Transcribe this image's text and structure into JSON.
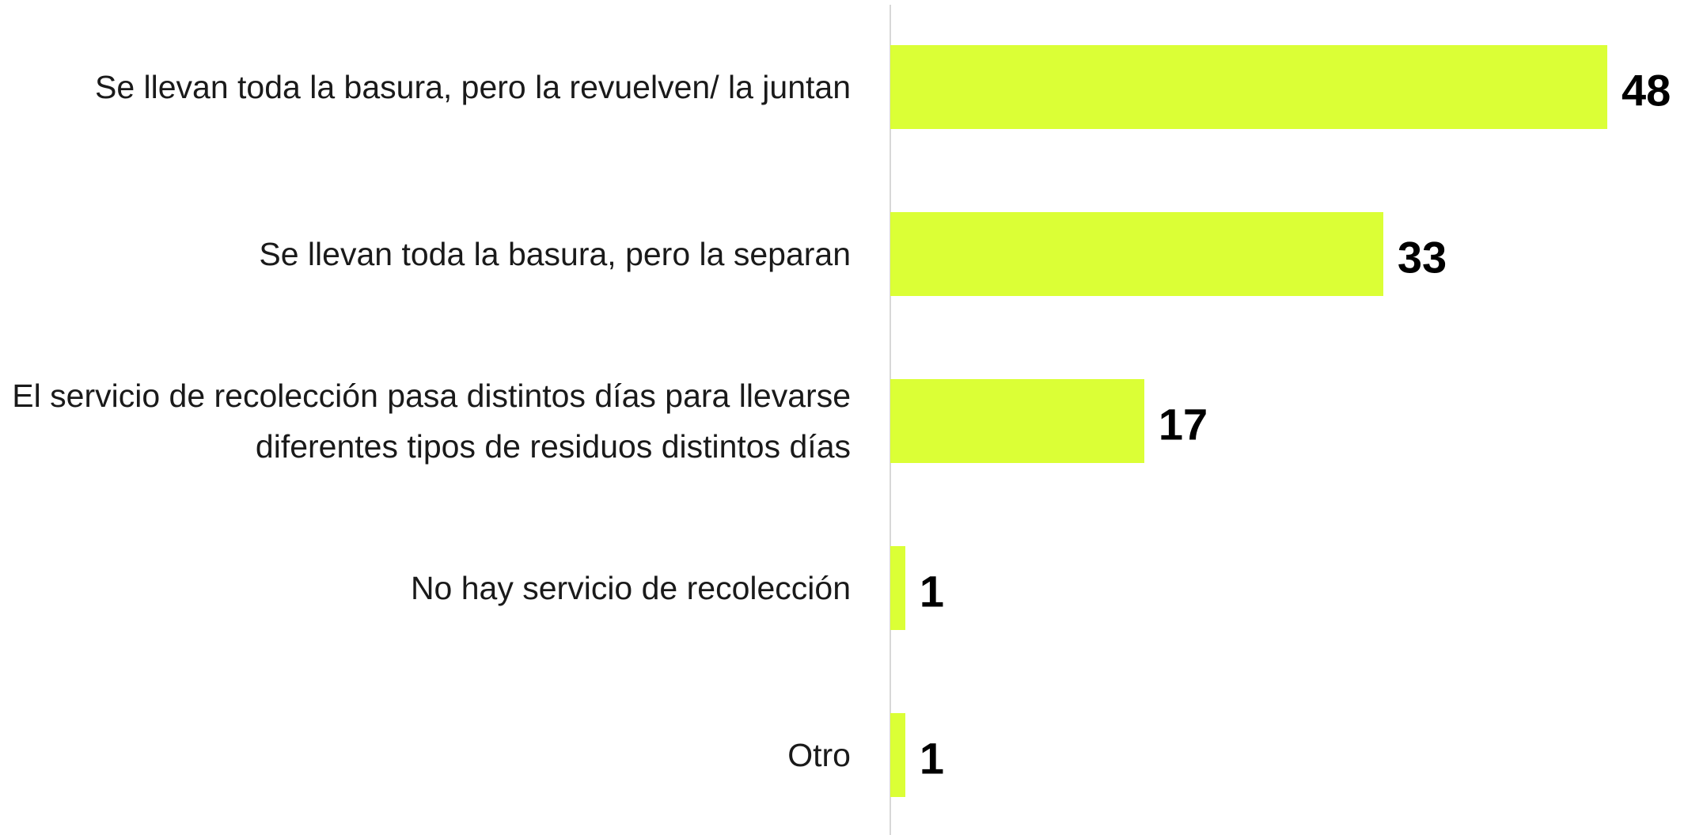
{
  "chart_data": {
    "type": "hbar",
    "categories": [
      "Se llevan toda la basura, pero la revuelven/ la juntan",
      "Se llevan toda la basura, pero la separan",
      "El servicio de recolección pasa distintos días para llevarse diferentes tipos de residuos distintos días",
      "No hay servicio de recolección",
      "Otro"
    ],
    "values": [
      48,
      33,
      17,
      1,
      1
    ],
    "color": "#dbff36"
  }
}
